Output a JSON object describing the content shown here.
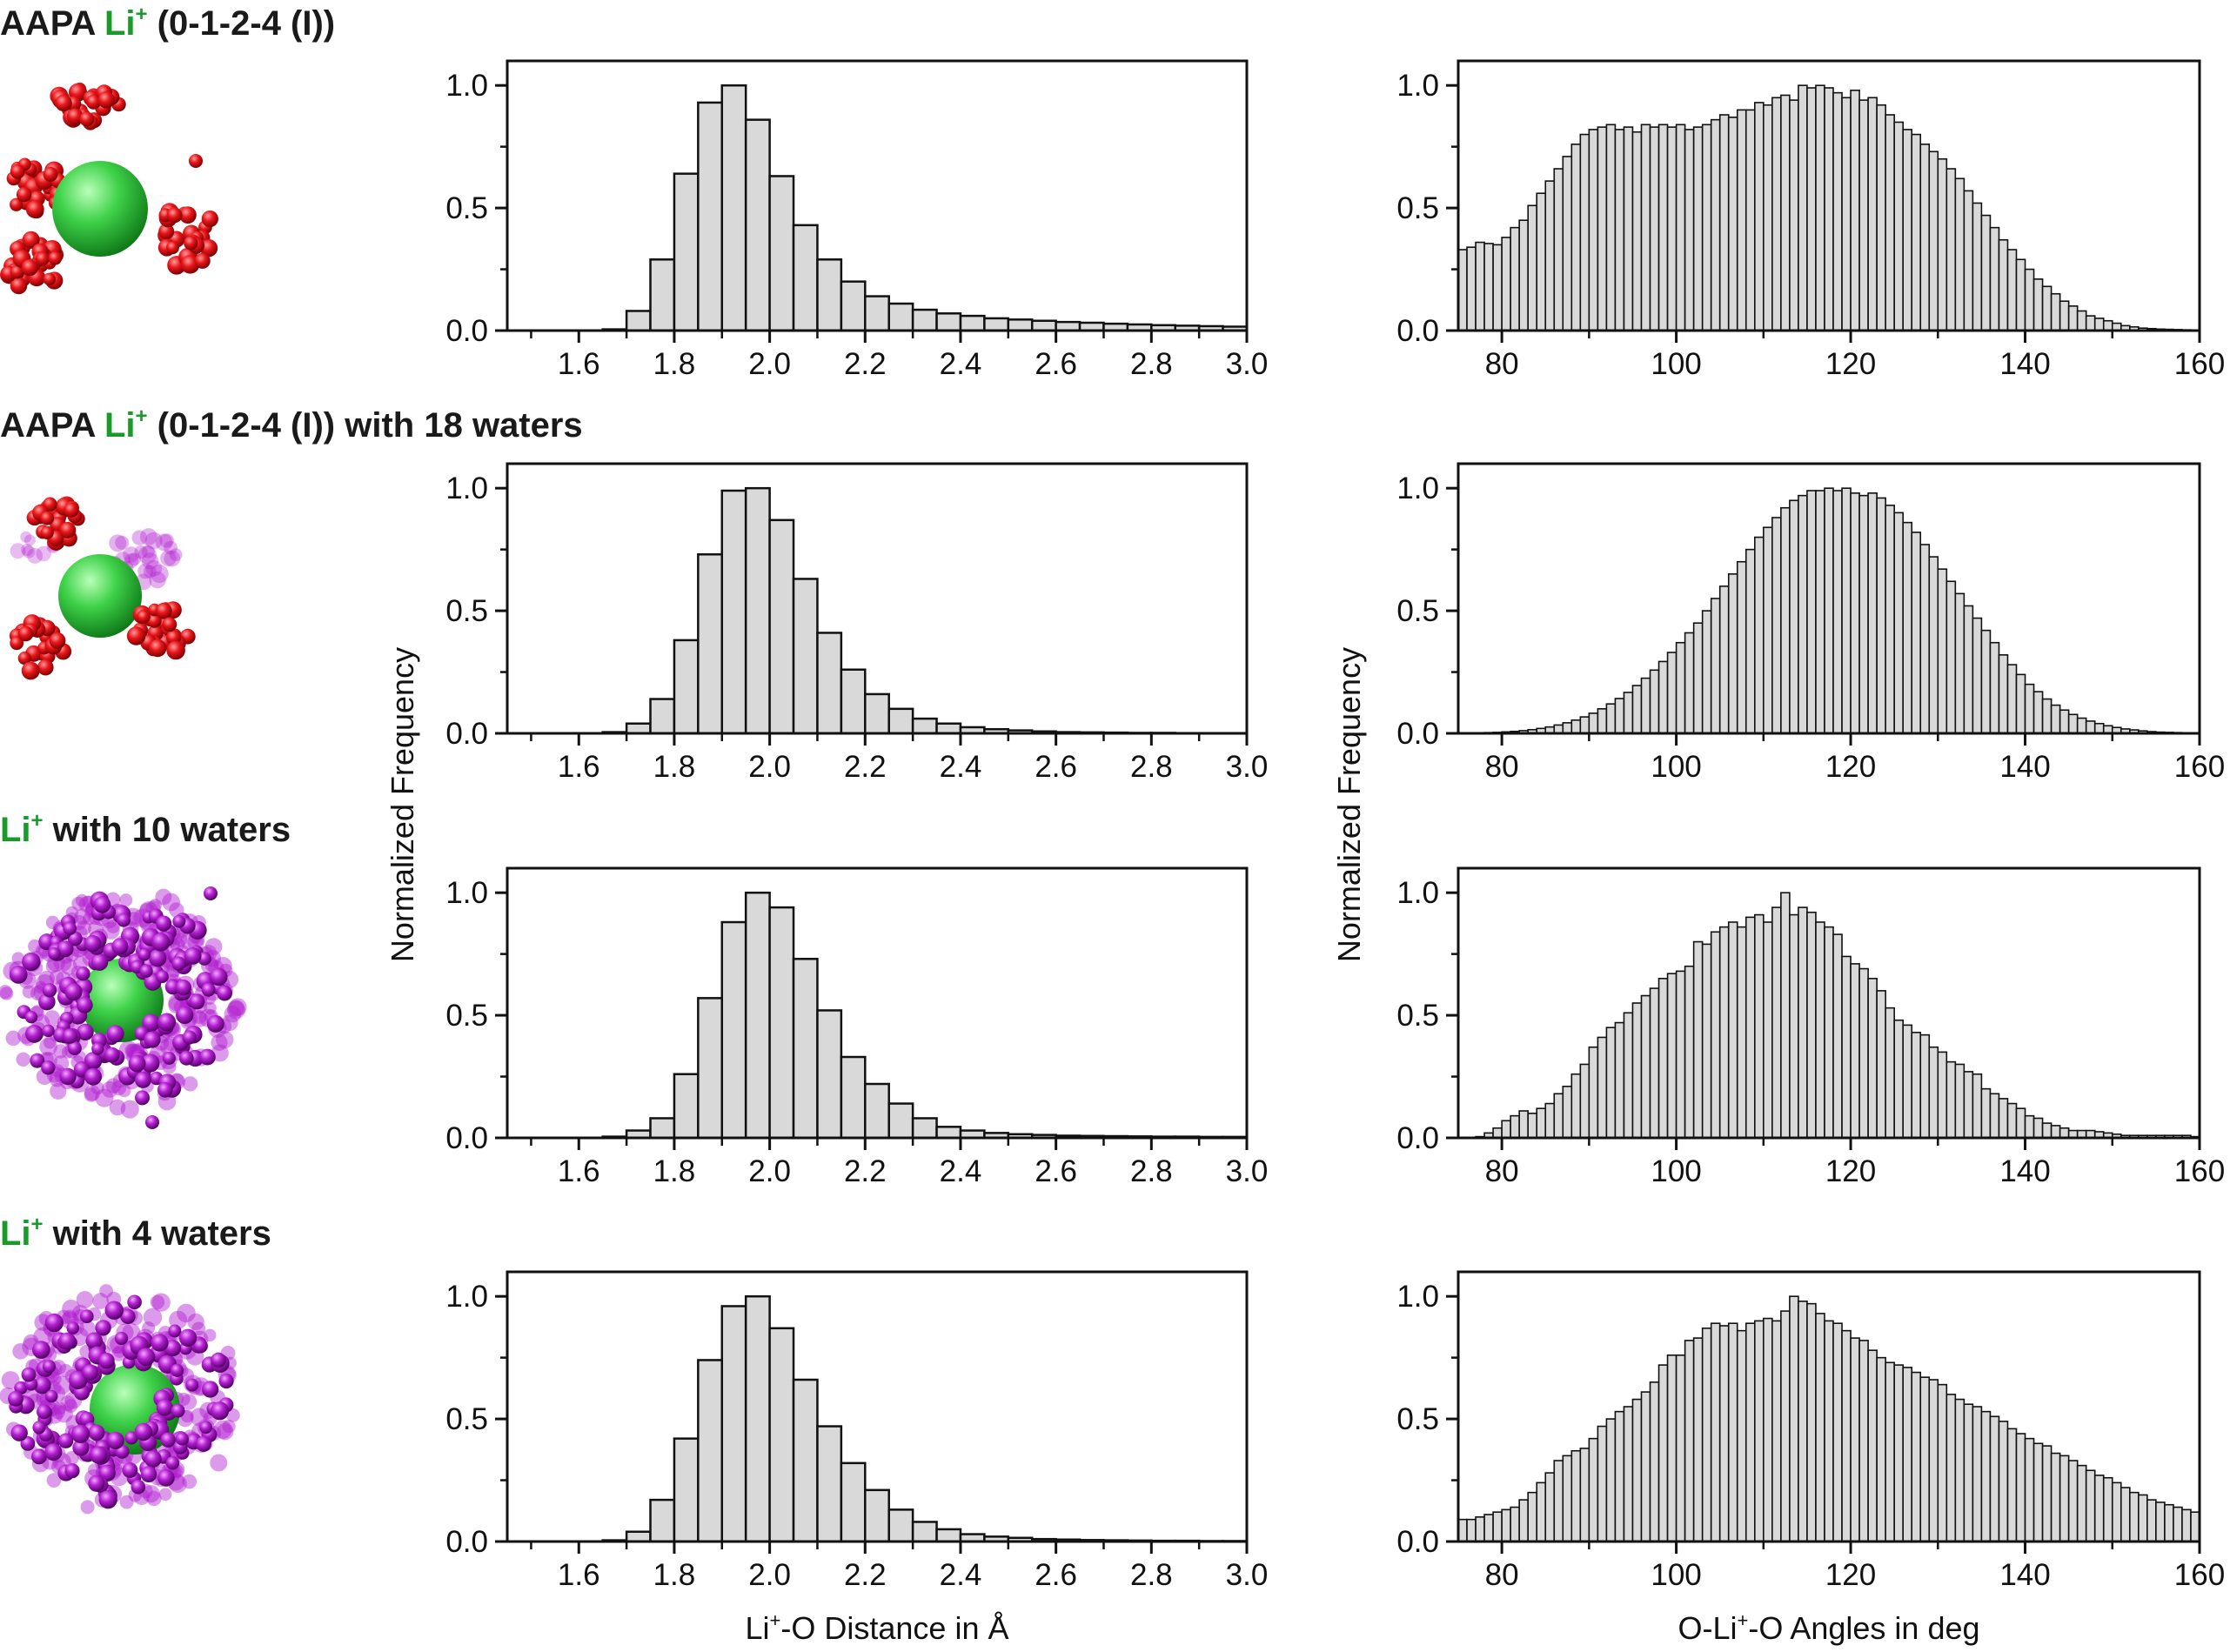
{
  "colors": {
    "bar_fill": "#d9d9d9",
    "bar_stroke": "#111111",
    "li_label": "#1a9a2a",
    "li_sphere": "#3fd24a",
    "oxygen": "#e8161b",
    "water": "#b21fd0"
  },
  "rows": [
    {
      "prefix": "AAPA ",
      "li": "Li",
      "charge": "+",
      "suffix": " (0-1-2-4 (I))",
      "cluster": "aapa"
    },
    {
      "prefix": "AAPA ",
      "li": "Li",
      "charge": "+",
      "suffix": " (0-1-2-4 (I)) with 18 waters",
      "cluster": "aapa_water"
    },
    {
      "prefix": "",
      "li": "Li",
      "charge": "+",
      "suffix": " with 10 waters",
      "cluster": "water10"
    },
    {
      "prefix": "",
      "li": "Li",
      "charge": "+",
      "suffix": " with 4 waters",
      "cluster": "water4"
    }
  ],
  "axes": {
    "ylabel": "Normalized Frequency",
    "distance_xlabel": {
      "pre": "Li",
      "sup": "+",
      "post": "-O Distance in Å"
    },
    "angle_xlabel": {
      "pre": "O-Li",
      "sup": "+",
      "post": "-O Angles in deg"
    }
  },
  "chart_data": [
    {
      "type": "bar",
      "panel": "distance",
      "row": 0,
      "title": "AAPA Li+ (0-1-2-4 (I))",
      "xlabel": "Li+-O Distance in Å",
      "ylabel": "Normalized Frequency",
      "xlim": [
        1.45,
        3.0
      ],
      "ylim": [
        0,
        1.1
      ],
      "xticks": [
        "1.6",
        "1.8",
        "2.0",
        "2.2",
        "2.4",
        "2.6",
        "2.8",
        "3.0"
      ],
      "yticks": [
        "0.0",
        "0.5",
        "1.0"
      ],
      "bin_start": 1.65,
      "bin_width": 0.05,
      "values": [
        0.005,
        0.08,
        0.29,
        0.64,
        0.93,
        1.0,
        0.86,
        0.63,
        0.43,
        0.29,
        0.2,
        0.14,
        0.11,
        0.085,
        0.07,
        0.06,
        0.05,
        0.045,
        0.04,
        0.035,
        0.032,
        0.028,
        0.025,
        0.022,
        0.02,
        0.018,
        0.016
      ]
    },
    {
      "type": "bar",
      "panel": "angle",
      "row": 0,
      "title": "AAPA Li+ (0-1-2-4 (I))",
      "xlabel": "O-Li+-O Angles in deg",
      "ylabel": "Normalized Frequency",
      "xlim": [
        75,
        160
      ],
      "ylim": [
        0,
        1.1
      ],
      "xticks": [
        "80",
        "100",
        "120",
        "140",
        "160"
      ],
      "yticks": [
        "0.0",
        "0.5",
        "1.0"
      ],
      "bin_start": 75,
      "bin_width": 1,
      "values": [
        0.33,
        0.34,
        0.36,
        0.355,
        0.35,
        0.38,
        0.42,
        0.45,
        0.51,
        0.56,
        0.61,
        0.66,
        0.71,
        0.76,
        0.8,
        0.82,
        0.83,
        0.84,
        0.82,
        0.83,
        0.81,
        0.84,
        0.83,
        0.84,
        0.83,
        0.84,
        0.82,
        0.83,
        0.84,
        0.86,
        0.88,
        0.87,
        0.9,
        0.9,
        0.93,
        0.92,
        0.95,
        0.96,
        0.94,
        1.0,
        0.99,
        1.0,
        0.99,
        0.97,
        0.95,
        0.98,
        0.94,
        0.95,
        0.92,
        0.88,
        0.85,
        0.82,
        0.8,
        0.76,
        0.73,
        0.7,
        0.66,
        0.62,
        0.57,
        0.52,
        0.47,
        0.42,
        0.37,
        0.33,
        0.29,
        0.25,
        0.21,
        0.18,
        0.15,
        0.12,
        0.1,
        0.08,
        0.06,
        0.05,
        0.04,
        0.03,
        0.02,
        0.015,
        0.01,
        0.008,
        0.006,
        0.005,
        0.004,
        0.003,
        0.002
      ]
    },
    {
      "type": "bar",
      "panel": "distance",
      "row": 1,
      "title": "AAPA Li+ (0-1-2-4 (I)) with 18 waters",
      "xlabel": "Li+-O Distance in Å",
      "ylabel": "Normalized Frequency",
      "xlim": [
        1.45,
        3.0
      ],
      "ylim": [
        0,
        1.1
      ],
      "xticks": [
        "1.6",
        "1.8",
        "2.0",
        "2.2",
        "2.4",
        "2.6",
        "2.8",
        "3.0"
      ],
      "yticks": [
        "0.0",
        "0.5",
        "1.0"
      ],
      "bin_start": 1.65,
      "bin_width": 0.05,
      "values": [
        0.005,
        0.04,
        0.14,
        0.38,
        0.73,
        0.99,
        1.0,
        0.87,
        0.63,
        0.41,
        0.26,
        0.16,
        0.1,
        0.06,
        0.04,
        0.025,
        0.017,
        0.012,
        0.008,
        0.005,
        0.004,
        0.003,
        0.002,
        0.002,
        0.001,
        0.001,
        0.001
      ]
    },
    {
      "type": "bar",
      "panel": "angle",
      "row": 1,
      "title": "AAPA Li+ (0-1-2-4 (I)) with 18 waters",
      "xlabel": "O-Li+-O Angles in deg",
      "ylabel": "Normalized Frequency",
      "xlim": [
        75,
        160
      ],
      "ylim": [
        0,
        1.1
      ],
      "xticks": [
        "80",
        "100",
        "120",
        "140",
        "160"
      ],
      "yticks": [
        "0.0",
        "0.5",
        "1.0"
      ],
      "bin_start": 75,
      "bin_width": 1,
      "values": [
        0.001,
        0.001,
        0.002,
        0.003,
        0.004,
        0.006,
        0.008,
        0.011,
        0.015,
        0.02,
        0.026,
        0.034,
        0.043,
        0.054,
        0.067,
        0.082,
        0.1,
        0.12,
        0.142,
        0.167,
        0.195,
        0.225,
        0.258,
        0.293,
        0.33,
        0.37,
        0.41,
        0.45,
        0.5,
        0.55,
        0.6,
        0.65,
        0.7,
        0.75,
        0.8,
        0.84,
        0.88,
        0.92,
        0.95,
        0.97,
        0.99,
        0.99,
        1.0,
        0.99,
        1.0,
        0.98,
        0.97,
        0.98,
        0.96,
        0.93,
        0.9,
        0.86,
        0.82,
        0.77,
        0.72,
        0.67,
        0.62,
        0.57,
        0.52,
        0.47,
        0.42,
        0.37,
        0.32,
        0.28,
        0.24,
        0.2,
        0.17,
        0.14,
        0.115,
        0.095,
        0.077,
        0.062,
        0.05,
        0.04,
        0.031,
        0.024,
        0.018,
        0.014,
        0.01,
        0.007,
        0.005,
        0.004,
        0.003,
        0.002,
        0.001
      ]
    },
    {
      "type": "bar",
      "panel": "distance",
      "row": 2,
      "title": "Li+ with 10 waters",
      "xlabel": "Li+-O Distance in Å",
      "ylabel": "Normalized Frequency",
      "xlim": [
        1.45,
        3.0
      ],
      "ylim": [
        0,
        1.1
      ],
      "xticks": [
        "1.6",
        "1.8",
        "2.0",
        "2.2",
        "2.4",
        "2.6",
        "2.8",
        "3.0"
      ],
      "yticks": [
        "0.0",
        "0.5",
        "1.0"
      ],
      "bin_start": 1.65,
      "bin_width": 0.05,
      "values": [
        0.005,
        0.03,
        0.08,
        0.26,
        0.57,
        0.88,
        1.0,
        0.94,
        0.73,
        0.52,
        0.33,
        0.22,
        0.14,
        0.08,
        0.045,
        0.03,
        0.02,
        0.015,
        0.012,
        0.009,
        0.008,
        0.007,
        0.006,
        0.005,
        0.005,
        0.004,
        0.004
      ]
    },
    {
      "type": "bar",
      "panel": "angle",
      "row": 2,
      "title": "Li+ with 10 waters",
      "xlabel": "O-Li+-O Angles in deg",
      "ylabel": "Normalized Frequency",
      "xlim": [
        75,
        160
      ],
      "ylim": [
        0,
        1.1
      ],
      "xticks": [
        "80",
        "100",
        "120",
        "140",
        "160"
      ],
      "yticks": [
        "0.0",
        "0.5",
        "1.0"
      ],
      "bin_start": 75,
      "bin_width": 1,
      "values": [
        0.0,
        0.0,
        0.005,
        0.02,
        0.04,
        0.07,
        0.09,
        0.11,
        0.1,
        0.12,
        0.14,
        0.18,
        0.21,
        0.26,
        0.3,
        0.37,
        0.41,
        0.45,
        0.47,
        0.51,
        0.55,
        0.58,
        0.61,
        0.65,
        0.67,
        0.68,
        0.7,
        0.8,
        0.79,
        0.84,
        0.86,
        0.88,
        0.86,
        0.9,
        0.91,
        0.88,
        0.94,
        1.0,
        0.91,
        0.94,
        0.92,
        0.88,
        0.86,
        0.83,
        0.74,
        0.71,
        0.69,
        0.65,
        0.6,
        0.53,
        0.48,
        0.46,
        0.43,
        0.42,
        0.37,
        0.35,
        0.31,
        0.3,
        0.27,
        0.26,
        0.2,
        0.18,
        0.16,
        0.14,
        0.12,
        0.09,
        0.08,
        0.06,
        0.05,
        0.04,
        0.03,
        0.03,
        0.03,
        0.025,
        0.02,
        0.015,
        0.01,
        0.01,
        0.01,
        0.01,
        0.01,
        0.01,
        0.01,
        0.01,
        0.005
      ]
    },
    {
      "type": "bar",
      "panel": "distance",
      "row": 3,
      "title": "Li+ with 4 waters",
      "xlabel": "Li+-O Distance in Å",
      "ylabel": "Normalized Frequency",
      "xlim": [
        1.45,
        3.0
      ],
      "ylim": [
        0,
        1.1
      ],
      "xticks": [
        "1.6",
        "1.8",
        "2.0",
        "2.2",
        "2.4",
        "2.6",
        "2.8",
        "3.0"
      ],
      "yticks": [
        "0.0",
        "0.5",
        "1.0"
      ],
      "bin_start": 1.65,
      "bin_width": 0.05,
      "values": [
        0.005,
        0.04,
        0.17,
        0.42,
        0.74,
        0.96,
        1.0,
        0.87,
        0.66,
        0.47,
        0.32,
        0.21,
        0.13,
        0.08,
        0.05,
        0.03,
        0.02,
        0.015,
        0.01,
        0.008,
        0.006,
        0.005,
        0.004,
        0.003,
        0.003,
        0.002,
        0.002
      ]
    },
    {
      "type": "bar",
      "panel": "angle",
      "row": 3,
      "title": "Li+ with 4 waters",
      "xlabel": "O-Li+-O Angles in deg",
      "ylabel": "Normalized Frequency",
      "xlim": [
        75,
        160
      ],
      "ylim": [
        0,
        1.1
      ],
      "xticks": [
        "80",
        "100",
        "120",
        "140",
        "160"
      ],
      "yticks": [
        "0.0",
        "0.5",
        "1.0"
      ],
      "bin_start": 75,
      "bin_width": 1,
      "values": [
        0.09,
        0.09,
        0.1,
        0.11,
        0.12,
        0.13,
        0.14,
        0.17,
        0.2,
        0.24,
        0.28,
        0.33,
        0.35,
        0.37,
        0.38,
        0.42,
        0.47,
        0.5,
        0.53,
        0.55,
        0.58,
        0.61,
        0.65,
        0.72,
        0.76,
        0.76,
        0.82,
        0.83,
        0.87,
        0.89,
        0.88,
        0.89,
        0.86,
        0.89,
        0.9,
        0.91,
        0.9,
        0.94,
        1.0,
        0.98,
        0.97,
        0.93,
        0.9,
        0.89,
        0.86,
        0.83,
        0.82,
        0.78,
        0.75,
        0.73,
        0.72,
        0.71,
        0.69,
        0.67,
        0.66,
        0.64,
        0.6,
        0.58,
        0.56,
        0.55,
        0.53,
        0.51,
        0.49,
        0.46,
        0.44,
        0.42,
        0.4,
        0.39,
        0.36,
        0.35,
        0.33,
        0.31,
        0.29,
        0.27,
        0.26,
        0.24,
        0.22,
        0.2,
        0.19,
        0.17,
        0.16,
        0.15,
        0.14,
        0.13,
        0.12
      ]
    }
  ]
}
